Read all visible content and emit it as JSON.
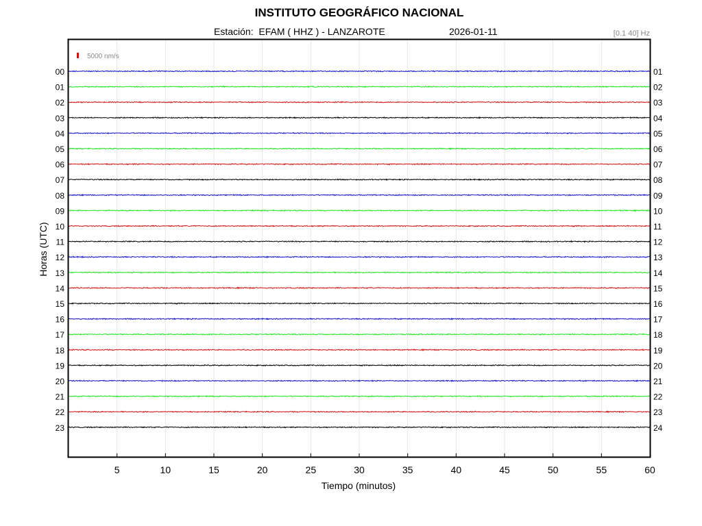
{
  "header": {
    "title": "INSTITUTO GEOGRÁFICO NACIONAL",
    "station_line": "Estación:  EFAM ( HHZ ) - LANZAROTE",
    "date": "2026-01-11",
    "filter": "[0.1 40] Hz"
  },
  "chart_data": {
    "type": "line",
    "title": "INSTITUTO GEOGRÁFICO NACIONAL",
    "xlabel": "Tiempo (minutos)",
    "ylabel": "Horas (UTC)",
    "xlim": [
      0,
      60
    ],
    "x_ticks": [
      "5",
      "10",
      "15",
      "20",
      "25",
      "30",
      "35",
      "40",
      "45",
      "50",
      "55",
      "60"
    ],
    "grid": true,
    "scale_label": "5000 nm/s",
    "left_hour_labels": [
      "00",
      "01",
      "02",
      "03",
      "04",
      "05",
      "06",
      "07",
      "08",
      "09",
      "10",
      "11",
      "12",
      "13",
      "14",
      "15",
      "16",
      "17",
      "18",
      "19",
      "20",
      "21",
      "22",
      "23"
    ],
    "right_hour_labels": [
      "01",
      "02",
      "03",
      "04",
      "05",
      "06",
      "07",
      "08",
      "09",
      "10",
      "11",
      "12",
      "13",
      "14",
      "15",
      "16",
      "17",
      "18",
      "19",
      "20",
      "21",
      "22",
      "23",
      "24"
    ],
    "trace_colors": [
      "#1414c8",
      "#1ee61e",
      "#d21414",
      "#000000"
    ],
    "noise_amplitude_nm_s": 600
  }
}
